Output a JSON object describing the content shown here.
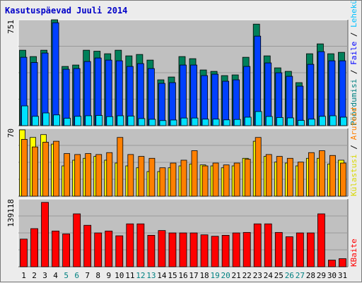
{
  "title": "Kasutuspäevad Juuli 2014",
  "right_labels": {
    "top": [
      {
        "text": "Pöördumisi",
        "color": "#008080"
      },
      {
        "text": " / ",
        "color": "#000000"
      },
      {
        "text": "Faile",
        "color": "#0000ff"
      },
      {
        "text": " / ",
        "color": "#000000"
      },
      {
        "text": "Lehekülgi",
        "color": "#00c0ff"
      }
    ],
    "middle": [
      {
        "text": "Külastusi",
        "color": "#d8d800"
      },
      {
        "text": " / ",
        "color": "#000000"
      },
      {
        "text": "Aruteid",
        "color": "#ff8000"
      }
    ],
    "bottom": [
      {
        "text": "KBaite",
        "color": "#ff0000"
      }
    ]
  },
  "colors": {
    "panel": "#c0c0c0",
    "hits": "#00805a",
    "files": "#0040ff",
    "pages": "#00e0ff",
    "visits": "#ffff00",
    "sites": "#ff8000",
    "kbytes": "#ff0000",
    "weekend": "#008080",
    "weekday": "#000000"
  },
  "chart_data": {
    "type": "bar",
    "title": "Kasutuspäevad Juuli 2014",
    "categories": [
      "1",
      "2",
      "3",
      "4",
      "5",
      "6",
      "7",
      "8",
      "9",
      "10",
      "11",
      "12",
      "13",
      "14",
      "15",
      "16",
      "17",
      "18",
      "19",
      "20",
      "21",
      "22",
      "23",
      "24",
      "25",
      "26",
      "27",
      "28",
      "29",
      "30",
      "31"
    ],
    "weekend_days": [
      5,
      6,
      12,
      13,
      19,
      20,
      26,
      27
    ],
    "panels": [
      {
        "name": "top",
        "ymax_label": "751",
        "ymax": 751,
        "series": [
          {
            "name": "Pöördumisi",
            "values": [
              535,
              490,
              535,
              751,
              420,
              430,
              535,
              528,
              510,
              535,
              495,
              505,
              465,
              325,
              345,
              490,
              475,
              395,
              385,
              355,
              360,
              485,
              720,
              495,
              410,
              385,
              305,
              510,
              580,
              510,
              520
            ]
          },
          {
            "name": "Faile",
            "values": [
              485,
              448,
              515,
              730,
              400,
              405,
              455,
              480,
              465,
              460,
              420,
              440,
              405,
              300,
              305,
              430,
              430,
              355,
              365,
              315,
              325,
              420,
              635,
              445,
              375,
              350,
              280,
              435,
              525,
              460,
              460
            ]
          },
          {
            "name": "Lehekülgi",
            "values": [
              140,
              66,
              90,
              76,
              52,
              66,
              70,
              72,
              64,
              70,
              68,
              50,
              45,
              36,
              40,
              54,
              54,
              46,
              46,
              41,
              44,
              60,
              100,
              65,
              58,
              55,
              37,
              46,
              66,
              70,
              60
            ]
          }
        ]
      },
      {
        "name": "middle",
        "ymax_label": "70",
        "ymax": 70,
        "series": [
          {
            "name": "Külastusi",
            "values": [
              70,
              62,
              65,
              55,
              32,
              38,
              40,
              42,
              38,
              35,
              32,
              30,
              26,
              26,
              30,
              32,
              34,
              33,
              32,
              30,
              32,
              40,
              58,
              42,
              36,
              35,
              32,
              40,
              40,
              34,
              38
            ]
          },
          {
            "name": "Aruteid",
            "values": [
              60,
              52,
              57,
              58,
              45,
              44,
              45,
              44,
              46,
              62,
              44,
              42,
              40,
              30,
              35,
              38,
              48,
              32,
              35,
              33,
              35,
              39,
              62,
              44,
              42,
              40,
              36,
              46,
              48,
              43,
              35
            ]
          }
        ]
      },
      {
        "name": "bottom",
        "ymax_label": "139118",
        "ymax": 139118,
        "series": [
          {
            "name": "KBaite",
            "values": [
              58000,
              80000,
              135000,
              75000,
              69000,
              111000,
              87000,
              71000,
              75000,
              65000,
              90000,
              90000,
              66000,
              76000,
              71000,
              71000,
              71000,
              67000,
              64000,
              66000,
              71000,
              72000,
              90000,
              90000,
              72000,
              63000,
              71000,
              71000,
              111000,
              14000,
              17000
            ]
          }
        ]
      }
    ]
  }
}
